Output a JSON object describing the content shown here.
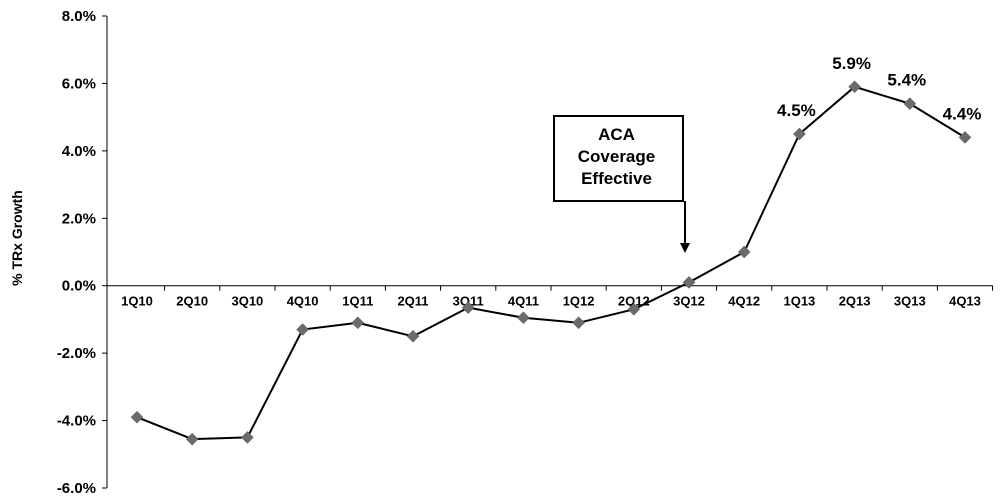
{
  "chart_data": {
    "type": "line",
    "title": "",
    "xlabel": "",
    "ylabel": "% TRx Growth",
    "categories": [
      "1Q10",
      "2Q10",
      "3Q10",
      "4Q10",
      "1Q11",
      "2Q11",
      "3Q11",
      "4Q11",
      "1Q12",
      "2Q12",
      "3Q12",
      "4Q12",
      "1Q13",
      "2Q13",
      "3Q13",
      "4Q13"
    ],
    "series": [
      {
        "values": [
          -3.9,
          -4.55,
          -4.5,
          -1.3,
          -1.1,
          -1.5,
          -0.65,
          -0.95,
          -1.1,
          -0.7,
          0.1,
          1.0,
          4.5,
          5.9,
          5.4,
          4.4
        ]
      }
    ],
    "ylim": [
      -6.0,
      8.0
    ],
    "yticks": [
      8.0,
      6.0,
      4.0,
      2.0,
      0.0,
      -2.0,
      -4.0,
      -6.0
    ],
    "ytick_labels": [
      "8.0%",
      "6.0%",
      "4.0%",
      "2.0%",
      "0.0%",
      "-2.0%",
      "-4.0%",
      "-6.0%"
    ],
    "grid": false,
    "legend": "none",
    "line_color": "#000000",
    "marker_color": "#6b6b6b",
    "data_labels": [
      {
        "category": "1Q13",
        "text": "4.5%"
      },
      {
        "category": "2Q13",
        "text": "5.9%"
      },
      {
        "category": "3Q13",
        "text": "5.4%"
      },
      {
        "category": "4Q13",
        "text": "4.4%"
      }
    ],
    "annotation": {
      "lines": [
        "ACA",
        "Coverage",
        "Effective"
      ],
      "points_to": "3Q12"
    }
  }
}
